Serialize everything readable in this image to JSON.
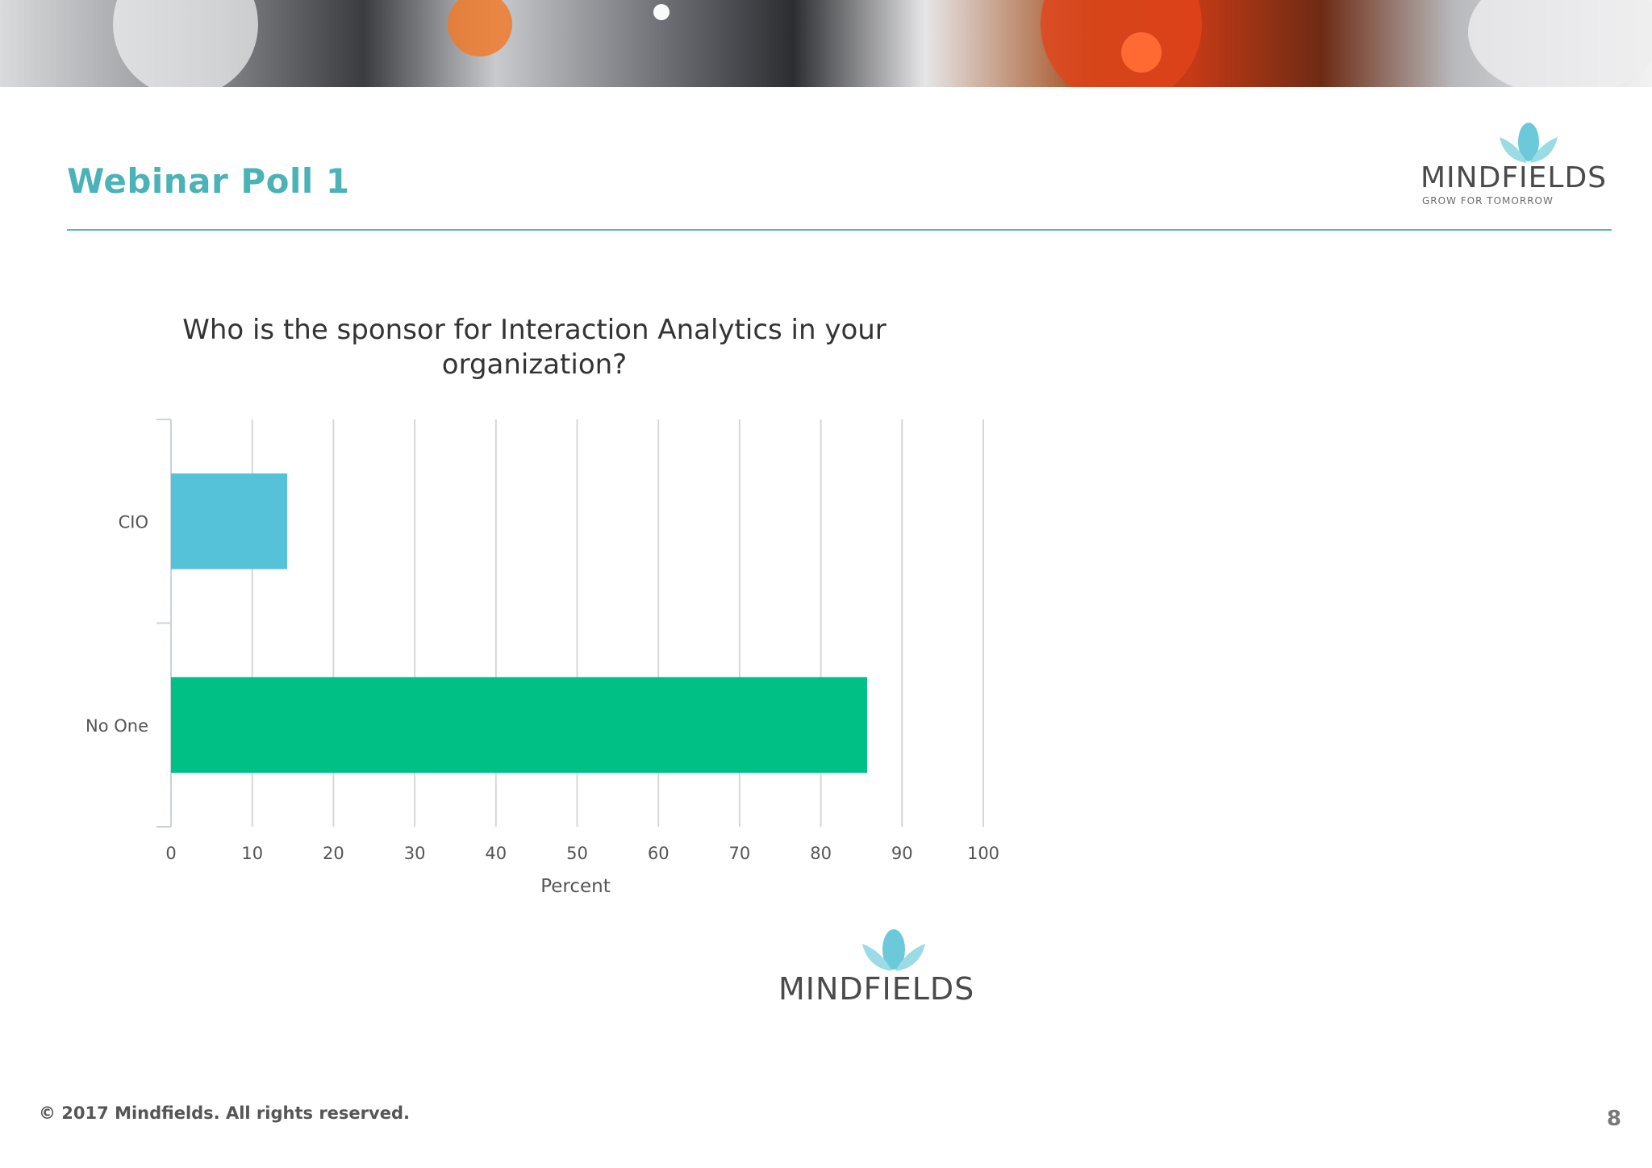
{
  "slide": {
    "title": "Webinar Poll 1",
    "page_number": "8",
    "footer": "© 2017  Mindfields. All rights reserved."
  },
  "logo": {
    "name": "MINDFIELDS",
    "tagline": "GROW FOR TOMORROW",
    "color": "#6cc9d9"
  },
  "chart_data": {
    "type": "bar",
    "orientation": "horizontal",
    "title": "Who is the sponsor for Interaction Analytics in your organization?",
    "title_lines": [
      "Who is the sponsor for Interaction Analytics in your",
      "organization?"
    ],
    "categories": [
      "CIO",
      "No One"
    ],
    "values": [
      14.3,
      85.7
    ],
    "bar_colors": [
      "#55c2d9",
      "#00c086"
    ],
    "xlabel": "Percent",
    "ylabel": "",
    "xlim": [
      0,
      100
    ],
    "xticks": [
      "0",
      "10",
      "20",
      "30",
      "40",
      "50",
      "60",
      "70",
      "80",
      "90",
      "100"
    ],
    "grid": "vertical",
    "legend": "none"
  }
}
